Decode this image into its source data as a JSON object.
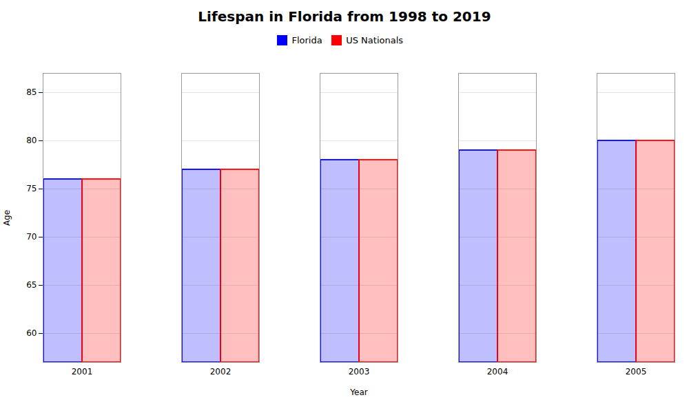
{
  "chart_data": {
    "type": "bar",
    "title": "Lifespan in Florida from 1998 to 2019",
    "x_label": "Year",
    "y_label": "Age",
    "categories": [
      "2001",
      "2002",
      "2003",
      "2004",
      "2005"
    ],
    "series": [
      {
        "name": "Florida",
        "color": "#0000ff",
        "values": [
          76,
          77,
          78,
          79,
          80
        ]
      },
      {
        "name": "US Nationals",
        "color": "#ff0000",
        "values": [
          76,
          77,
          78,
          79,
          80
        ]
      }
    ],
    "ylim": [
      57,
      87
    ],
    "yticks": [
      60,
      65,
      70,
      75,
      80,
      85
    ],
    "grid": true,
    "legend": "top"
  }
}
